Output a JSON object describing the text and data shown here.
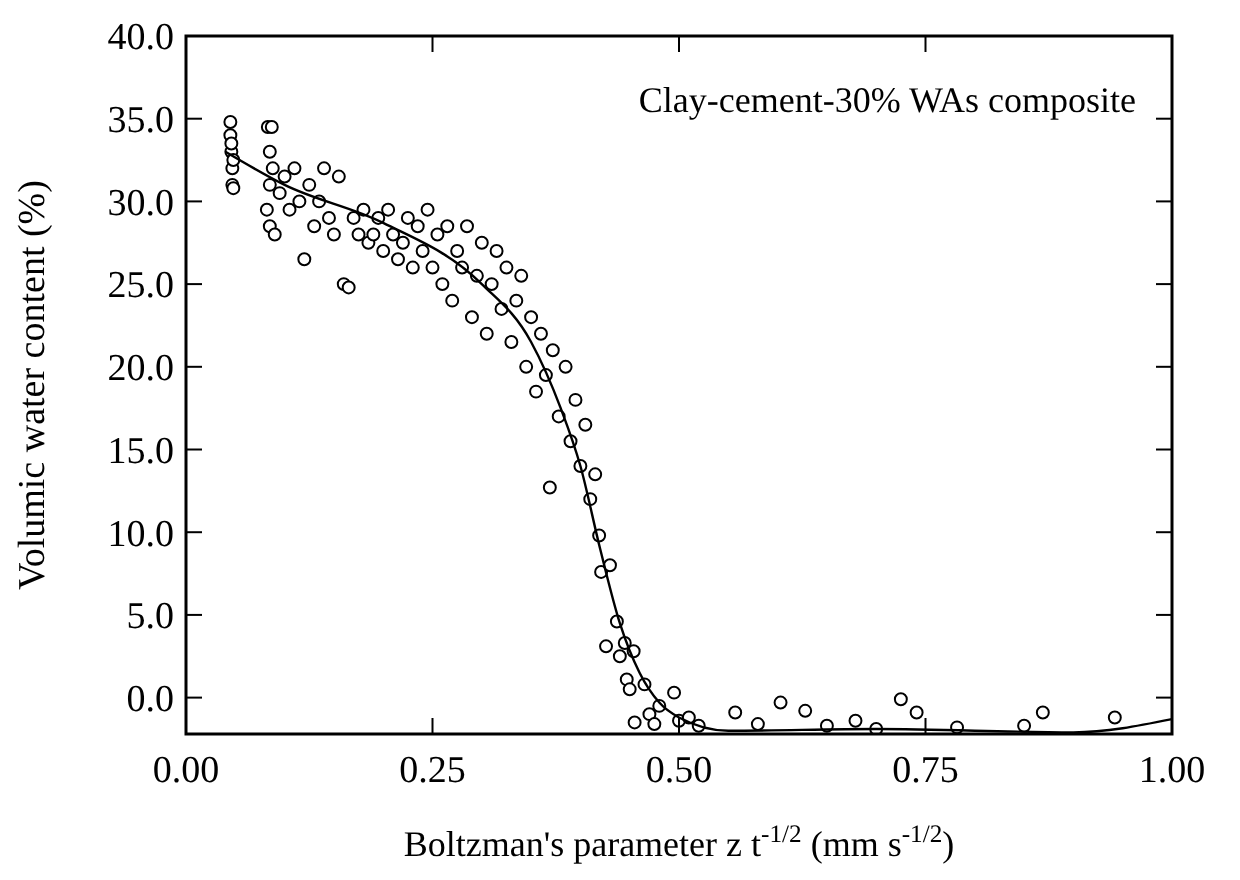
{
  "chart_data": {
    "type": "scatter",
    "xlabel": "Boltzman's parameter z t$^{-1/2}$ (mm s$^{-1/2}$)",
    "ylabel": "Volumic water content (%)",
    "annotations": [
      "Clay-cement-30% WAs composite"
    ],
    "xlim": [
      0,
      1
    ],
    "xticks": [
      {
        "value": 0,
        "label": "0.00"
      },
      {
        "value": 0.25,
        "label": "0.25"
      },
      {
        "value": 0.5,
        "label": "0.50"
      },
      {
        "value": 0.75,
        "label": "0.75"
      },
      {
        "value": 1,
        "label": "1.00"
      }
    ],
    "ylim": [
      -2.2,
      40
    ],
    "yticks": [
      {
        "value": 0,
        "label": "0.0"
      },
      {
        "value": 5,
        "label": "5.0"
      },
      {
        "value": 10,
        "label": "10.0"
      },
      {
        "value": 15,
        "label": "15.0"
      },
      {
        "value": 20,
        "label": "20.0"
      },
      {
        "value": 25,
        "label": "25.0"
      },
      {
        "value": 30,
        "label": "30.0"
      },
      {
        "value": 35,
        "label": "35.0"
      },
      {
        "value": 40,
        "label": "40.0"
      }
    ],
    "marker": "circle",
    "grid": false,
    "series": [
      {
        "color": "#000000",
        "x": [
          0.045,
          0.045,
          0.046,
          0.047,
          0.047,
          0.048,
          0.046,
          0.048,
          0.083,
          0.087,
          0.085,
          0.088,
          0.085,
          0.082,
          0.085,
          0.09,
          0.095,
          0.1,
          0.105,
          0.11,
          0.115,
          0.12,
          0.125,
          0.13,
          0.135,
          0.14,
          0.145,
          0.15,
          0.155,
          0.16,
          0.165,
          0.17,
          0.175,
          0.18,
          0.185,
          0.19,
          0.195,
          0.2,
          0.205,
          0.21,
          0.215,
          0.22,
          0.225,
          0.23,
          0.235,
          0.24,
          0.245,
          0.25,
          0.255,
          0.26,
          0.265,
          0.27,
          0.275,
          0.28,
          0.285,
          0.29,
          0.295,
          0.3,
          0.305,
          0.31,
          0.315,
          0.32,
          0.325,
          0.33,
          0.335,
          0.34,
          0.345,
          0.35,
          0.355,
          0.36,
          0.365,
          0.369,
          0.372,
          0.378,
          0.385,
          0.39,
          0.395,
          0.4,
          0.405,
          0.41,
          0.415,
          0.419,
          0.421,
          0.43,
          0.426,
          0.437,
          0.44,
          0.445,
          0.454,
          0.447,
          0.45,
          0.465,
          0.455,
          0.47,
          0.475,
          0.48,
          0.495,
          0.5,
          0.51,
          0.52,
          0.557,
          0.58,
          0.603,
          0.628,
          0.65,
          0.679,
          0.7,
          0.725,
          0.741,
          0.782,
          0.85,
          0.869,
          0.942
        ],
        "values": [
          34.8,
          34,
          33,
          32,
          31,
          30.8,
          33.5,
          32.5,
          34.5,
          34.5,
          33,
          32,
          31,
          29.5,
          28.5,
          28,
          30.5,
          31.5,
          29.5,
          32,
          30,
          26.5,
          31,
          28.5,
          30,
          32,
          29,
          28,
          31.5,
          25,
          24.8,
          29,
          28,
          29.5,
          27.5,
          28,
          29,
          27,
          29.5,
          28,
          26.5,
          27.5,
          29,
          26,
          28.5,
          27,
          29.5,
          26,
          28,
          25,
          28.5,
          24,
          27,
          26,
          28.5,
          23,
          25.5,
          27.5,
          22,
          25,
          27,
          23.5,
          26,
          21.5,
          24,
          25.5,
          20,
          23,
          18.5,
          22,
          19.5,
          12.7,
          21,
          17,
          20,
          15.5,
          18,
          14,
          16.5,
          12,
          13.5,
          9.8,
          7.6,
          8,
          3.1,
          4.6,
          2.5,
          3.3,
          2.8,
          1.1,
          0.5,
          0.8,
          -1.5,
          -1,
          -1.6,
          -0.5,
          0.3,
          -1.4,
          -1.2,
          -1.7,
          -0.9,
          -1.6,
          -0.3,
          -0.8,
          -1.7,
          -1.4,
          -1.9,
          -0.1,
          -0.9,
          -1.8,
          -1.7,
          -0.9,
          -1.2
        ]
      },
      {
        "type": "line",
        "marker": "none",
        "color": "#000000",
        "x": [
          0.04,
          0.1,
          0.2,
          0.3,
          0.35,
          0.38,
          0.4,
          0.42,
          0.44,
          0.46,
          0.48,
          0.5,
          0.55,
          0.7,
          0.9,
          1.0
        ],
        "values": [
          33,
          31,
          28.7,
          25,
          21.5,
          17.5,
          14,
          9,
          4.5,
          1.5,
          -0.3,
          -1.2,
          -2,
          -1.9,
          -2.1,
          -1.3
        ]
      }
    ]
  }
}
